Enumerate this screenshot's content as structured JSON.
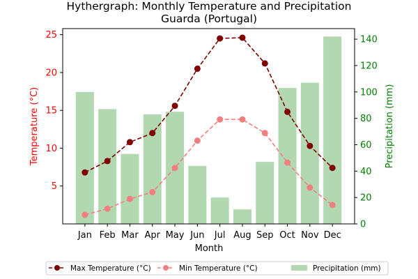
{
  "chart_data": {
    "type": "bar+line",
    "title": "Hythergraph: Monthly Temperature and Precipitation",
    "subtitle": "Guarda (Portugal)",
    "xlabel": "Month",
    "ylabel_left": "Temperature (°C)",
    "ylabel_right": "Precipitation (mm)",
    "categories": [
      "Jan",
      "Feb",
      "Mar",
      "Apr",
      "May",
      "Jun",
      "Jul",
      "Aug",
      "Sep",
      "Oct",
      "Nov",
      "Dec"
    ],
    "ylim_left": [
      0,
      25.8
    ],
    "ylim_right": [
      0,
      148
    ],
    "yticks_left": [
      5,
      10,
      15,
      20,
      25
    ],
    "yticks_right": [
      0,
      20,
      40,
      60,
      80,
      100,
      120,
      140
    ],
    "grid": false,
    "legend_position": "bottom-center",
    "series": [
      {
        "name": "Max Temperature (°C)",
        "kind": "line",
        "axis": "left",
        "color": "#800000",
        "linestyle": "dashed",
        "marker": "circle",
        "values": [
          6.8,
          8.3,
          10.8,
          12.0,
          15.6,
          20.5,
          24.5,
          24.6,
          21.2,
          14.8,
          10.3,
          7.4
        ]
      },
      {
        "name": "Min Temperature (°C)",
        "kind": "line",
        "axis": "left",
        "color": "#f08080",
        "linestyle": "dashed",
        "marker": "circle",
        "values": [
          1.2,
          2.0,
          3.3,
          4.2,
          7.4,
          11.0,
          13.8,
          13.8,
          12.0,
          8.1,
          4.8,
          2.5
        ]
      },
      {
        "name": "Precipitation (mm)",
        "kind": "bar",
        "axis": "right",
        "color": "#b2d8b2",
        "values": [
          100,
          87,
          53,
          83,
          85,
          44,
          20,
          11,
          47,
          103,
          107,
          142
        ]
      }
    ]
  },
  "colors": {
    "left_axis": "#ff0000",
    "right_axis": "#008000",
    "frame": "#000000"
  }
}
